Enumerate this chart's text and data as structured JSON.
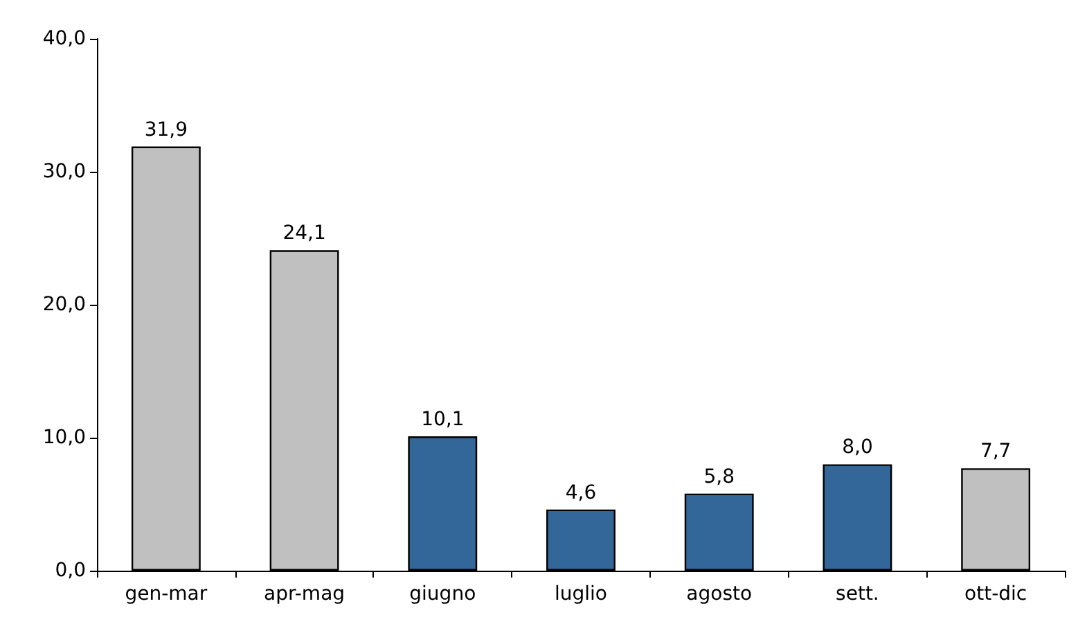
{
  "chart_data": {
    "type": "bar",
    "categories": [
      "gen-mar",
      "apr-mag",
      "giugno",
      "luglio",
      "agosto",
      "sett.",
      "ott-dic"
    ],
    "values": [
      31.9,
      24.1,
      10.1,
      4.6,
      5.8,
      8.0,
      7.7
    ],
    "colors": [
      "#c0c0c0",
      "#c0c0c0",
      "#336699",
      "#336699",
      "#336699",
      "#336699",
      "#c0c0c0"
    ],
    "value_labels": [
      "31,9",
      "24,1",
      "10,1",
      "4,6",
      "5,8",
      "8,0",
      "7,7"
    ],
    "ylim": [
      0,
      40
    ],
    "yticks": [
      {
        "value": 0,
        "label": "0,0"
      },
      {
        "value": 10,
        "label": "10,0"
      },
      {
        "value": 20,
        "label": "20,0"
      },
      {
        "value": 30,
        "label": "30,0"
      },
      {
        "value": 40,
        "label": "40,0"
      }
    ],
    "grid": false
  }
}
